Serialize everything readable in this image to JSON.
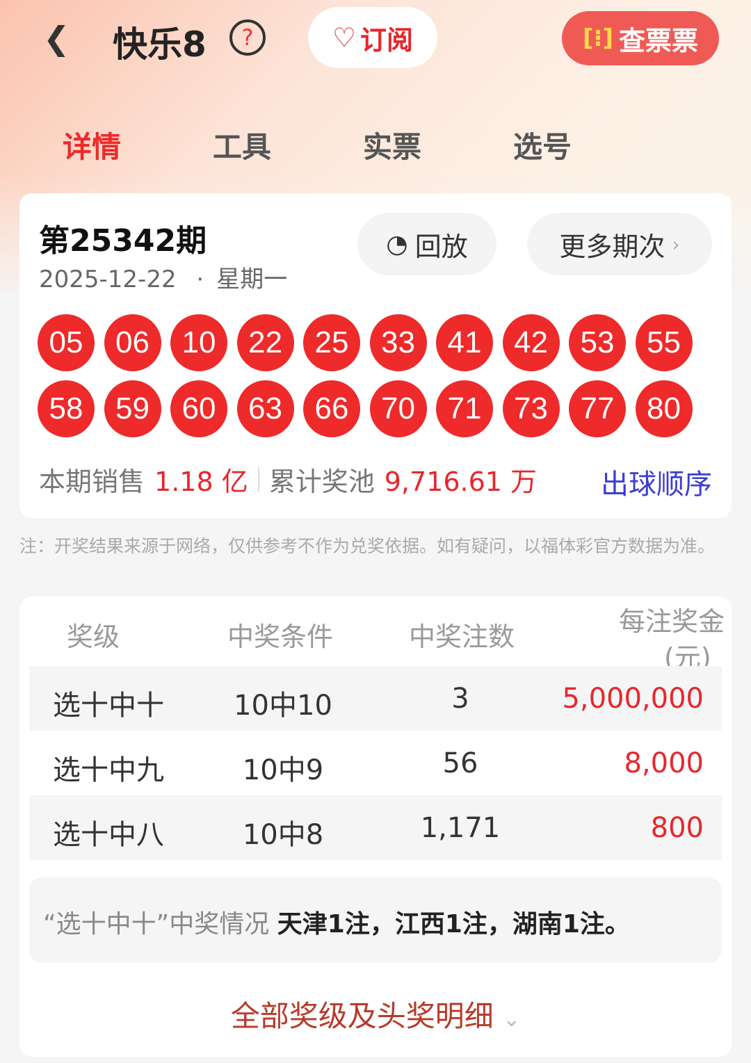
{
  "header": {
    "back_icon": "chevron-left-icon",
    "title": "快乐8",
    "help_icon": "question-circle-icon",
    "subscribe_label": "订阅",
    "subscribe_icon": "heart-plus-icon",
    "check_ticket_label": "查票票",
    "check_ticket_icon": "scan-icon"
  },
  "tabs": [
    {
      "label": "详情",
      "active": true
    },
    {
      "label": "工具"
    },
    {
      "label": "实票"
    },
    {
      "label": "选号"
    }
  ],
  "draw": {
    "issue": "第25342期",
    "date": "2025-12-22",
    "dot": "·",
    "weekday": "星期一",
    "replay_label": "回放",
    "more_label": "更多期次",
    "more_icon": "chevron-right-icon",
    "numbers": [
      "05",
      "06",
      "10",
      "22",
      "25",
      "33",
      "41",
      "42",
      "53",
      "55",
      "58",
      "59",
      "60",
      "63",
      "66",
      "70",
      "71",
      "73",
      "77",
      "80"
    ],
    "sales_label": "本期销售",
    "sales_value": "1.18 亿",
    "pool_label": "累计奖池",
    "pool_value": "9,716.61 万",
    "order_label": "出球顺序"
  },
  "note": "注：开奖结果来源于网络，仅供参考不作为兑奖依据。如有疑问，以福体彩官方数据为准。",
  "prize_table": {
    "headers": [
      "奖级",
      "中奖条件",
      "中奖注数",
      "每注奖金",
      "(元)"
    ],
    "rows": [
      {
        "level": "选十中十",
        "cond": "10中10",
        "count": "3",
        "prize": "5,000,000"
      },
      {
        "level": "选十中九",
        "cond": "10中9",
        "count": "56",
        "prize": "8,000"
      },
      {
        "level": "选十中八",
        "cond": "10中8",
        "count": "1,171",
        "prize": "800"
      }
    ]
  },
  "winners": {
    "label": "“选十中十”中奖情况",
    "detail": "天津1注，江西1注，湖南1注。"
  },
  "all_levels_label": "全部奖级及头奖明细",
  "colors": {
    "accent": "#ee2a2a",
    "link": "#3c3cd4"
  }
}
